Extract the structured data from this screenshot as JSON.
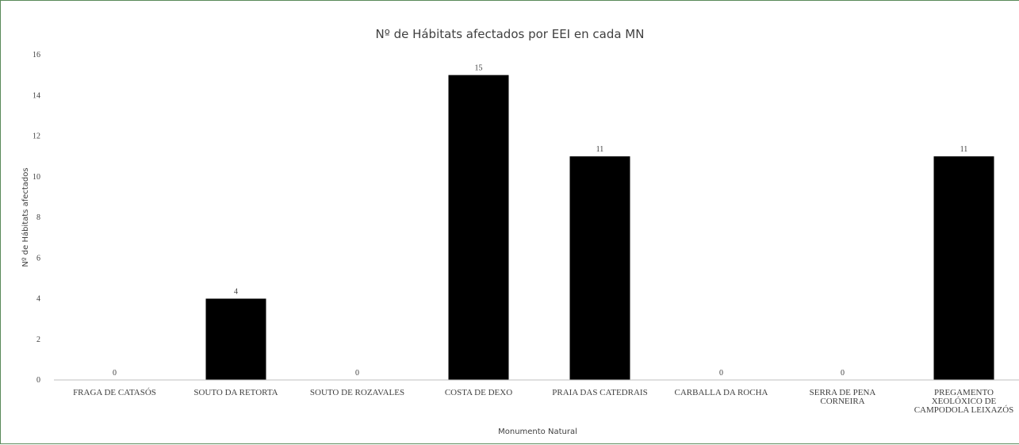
{
  "chart_data": {
    "type": "bar",
    "title": "Nº de Hábitats afectados por EEI en cada MN",
    "xlabel": "Monumento Natural",
    "ylabel": "Nº de Hábitats afectados",
    "categories": [
      "FRAGA DE CATASÓS",
      "SOUTO DA RETORTA",
      "SOUTO DE ROZAVALES",
      "COSTA DE DEXO",
      "PRAIA DAS CATEDRAIS",
      "CARBALLA DA ROCHA",
      "SERRA DE PENA CORNEIRA",
      "PREGAMENTO XEOLÓXICO DE CAMPODOLA LEIXAZÓS"
    ],
    "category_lines": [
      [
        "FRAGA DE CATASÓS"
      ],
      [
        "SOUTO DA RETORTA"
      ],
      [
        "SOUTO DE ROZAVALES"
      ],
      [
        "COSTA DE DEXO"
      ],
      [
        "PRAIA DAS CATEDRAIS"
      ],
      [
        "CARBALLA DA ROCHA"
      ],
      [
        "SERRA DE PENA",
        "CORNEIRA"
      ],
      [
        "PREGAMENTO",
        "XEOLÓXICO DE",
        "CAMPODOLA LEIXAZÓS"
      ]
    ],
    "values": [
      0,
      4,
      0,
      15,
      11,
      0,
      0,
      11
    ],
    "data_labels": [
      "0",
      "4",
      "0",
      "15",
      "11",
      "0",
      "0",
      "11"
    ],
    "ylim": [
      0,
      16
    ],
    "yticks": [
      0,
      2,
      4,
      6,
      8,
      10,
      12,
      14,
      16
    ],
    "grid": false,
    "legend": "none",
    "bar_color": "#000000",
    "border_color": "#5a8a5a"
  }
}
